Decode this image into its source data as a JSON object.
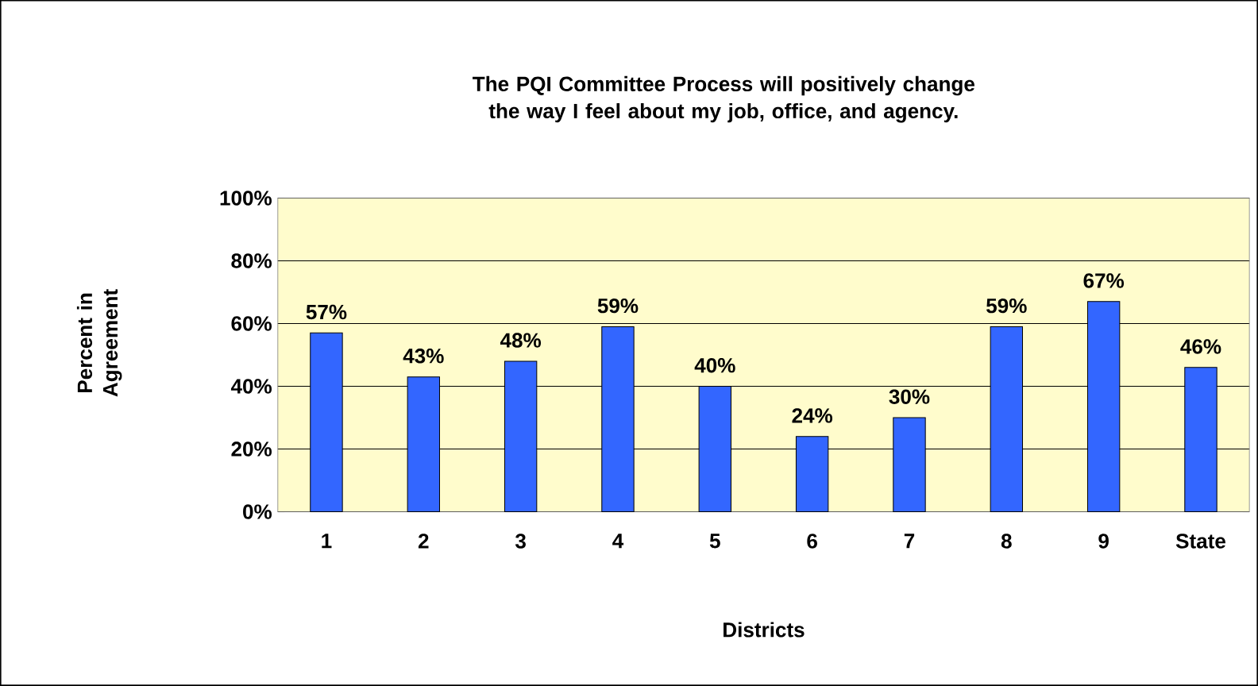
{
  "chart_data": {
    "type": "bar",
    "title": "The PQI Committee Process will positively change the way I feel about my job, office, and agency.",
    "xlabel": "Districts",
    "ylabel": "Percent in Agreement",
    "categories": [
      "1",
      "2",
      "3",
      "4",
      "5",
      "6",
      "7",
      "8",
      "9",
      "State"
    ],
    "values": [
      57,
      43,
      48,
      59,
      40,
      24,
      30,
      59,
      67,
      46
    ],
    "value_labels": [
      "57%",
      "43%",
      "48%",
      "59%",
      "40%",
      "24%",
      "30%",
      "59%",
      "67%",
      "46%"
    ],
    "color": "#3366ff",
    "ylim": [
      0,
      100
    ],
    "yticks": [
      {
        "value": 0,
        "label": "0%"
      },
      {
        "value": 20,
        "label": "20%"
      },
      {
        "value": 40,
        "label": "40%"
      },
      {
        "value": 60,
        "label": "60%"
      },
      {
        "value": 80,
        "label": "80%"
      },
      {
        "value": 100,
        "label": "100%"
      }
    ],
    "grid": "y"
  }
}
